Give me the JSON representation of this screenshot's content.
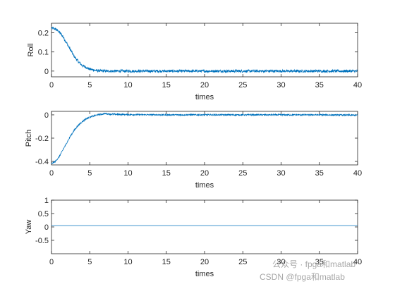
{
  "chart_data": [
    {
      "type": "line",
      "title": "",
      "xlabel": "times",
      "ylabel": "Roll",
      "xlim": [
        0,
        40
      ],
      "ylim": [
        -0.03,
        0.25
      ],
      "xticks": [
        0,
        5,
        10,
        15,
        20,
        25,
        30,
        35,
        40
      ],
      "yticks": [
        0,
        0.1,
        0.2
      ],
      "ytick_labels": [
        "0",
        "0.1",
        "0.2"
      ],
      "grid": false,
      "series": [
        {
          "color": "#0072BD",
          "noise_amplitude": 0.007,
          "x": [
            0,
            0.5,
            1,
            1.5,
            2,
            2.5,
            3,
            3.5,
            4,
            5,
            6,
            7,
            8,
            10,
            15,
            20,
            25,
            30,
            35,
            40
          ],
          "values": [
            0.225,
            0.22,
            0.205,
            0.18,
            0.145,
            0.11,
            0.075,
            0.05,
            0.03,
            0.01,
            0.002,
            0.0,
            0.0,
            0.0,
            0.0,
            0.0,
            0.0,
            0.0,
            0.0,
            0.0
          ]
        }
      ]
    },
    {
      "type": "line",
      "title": "",
      "xlabel": "times",
      "ylabel": "Pitch",
      "xlim": [
        0,
        40
      ],
      "ylim": [
        -0.43,
        0.03
      ],
      "xticks": [
        0,
        5,
        10,
        15,
        20,
        25,
        30,
        35,
        40
      ],
      "yticks": [
        -0.4,
        -0.2,
        0
      ],
      "ytick_labels": [
        "-0.4",
        "-0.2",
        "0"
      ],
      "grid": false,
      "series": [
        {
          "color": "#0072BD",
          "noise_amplitude": 0.006,
          "x": [
            0,
            0.5,
            1,
            1.5,
            2,
            2.5,
            3,
            3.5,
            4,
            4.5,
            5,
            6,
            7,
            8,
            10,
            15,
            20,
            25,
            30,
            35,
            40
          ],
          "values": [
            -0.42,
            -0.4,
            -0.36,
            -0.3,
            -0.24,
            -0.18,
            -0.13,
            -0.09,
            -0.06,
            -0.035,
            -0.02,
            0.0,
            0.01,
            0.005,
            0.002,
            0.0,
            0.0,
            0.0,
            0.0,
            0.0,
            -0.003
          ]
        }
      ]
    },
    {
      "type": "line",
      "title": "",
      "xlabel": "times",
      "ylabel": "Yaw",
      "xlim": [
        0,
        40
      ],
      "ylim": [
        -1,
        1
      ],
      "xticks": [
        0,
        5,
        10,
        15,
        20,
        25,
        30,
        35,
        40
      ],
      "yticks": [
        -0.5,
        0,
        0.5,
        1
      ],
      "ytick_labels": [
        "-0.5",
        "0",
        "0.5",
        "1"
      ],
      "grid": false,
      "series": [
        {
          "color": "#0072BD",
          "noise_amplitude": 0,
          "x": [
            0,
            40
          ],
          "values": [
            0.05,
            0.05
          ]
        }
      ]
    }
  ],
  "watermark": {
    "line1": "公众号 · fpga和matlab",
    "line2": "CSDN @fpga和matlab"
  }
}
